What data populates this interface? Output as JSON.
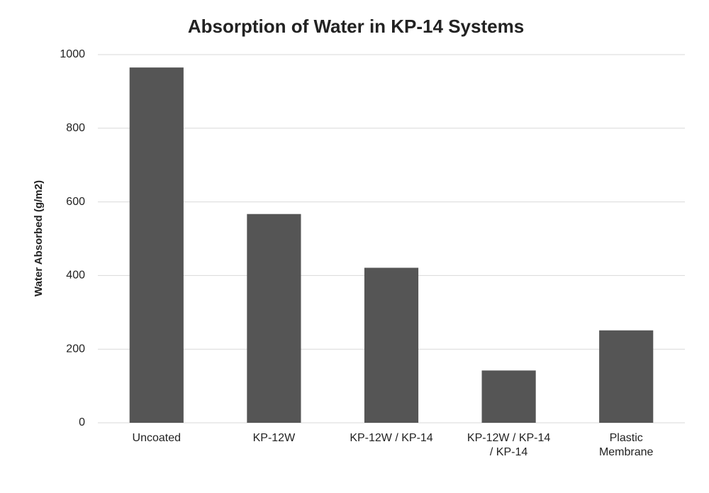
{
  "chart_data": {
    "type": "bar",
    "title": "Absorption of Water in KP-14 Systems",
    "y_label": "Water Absorbed (g/m2)",
    "categories": [
      "Uncoated",
      "KP-12W",
      "KP-12W / KP-14",
      "KP-12W / KP-14 / KP-14",
      "Plastic Membrane"
    ],
    "values": [
      965,
      567,
      421,
      142,
      251
    ],
    "color": "#555555",
    "ylim": [
      0,
      1000
    ],
    "yticks": [
      0,
      200,
      400,
      600,
      800,
      1000
    ],
    "grid": true
  }
}
